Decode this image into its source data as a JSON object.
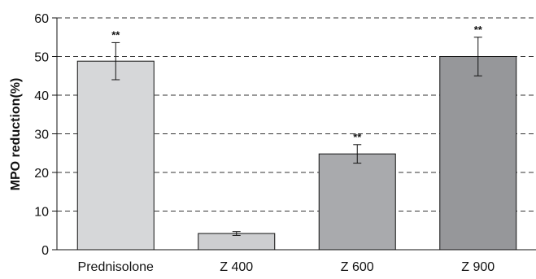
{
  "chart_data": {
    "type": "bar",
    "categories": [
      "Prednisolone",
      "Z 400",
      "Z 600",
      "Z 900"
    ],
    "values": [
      48.8,
      4.2,
      24.8,
      50.0
    ],
    "errors": [
      4.8,
      0.5,
      2.4,
      5.0
    ],
    "significance": [
      "**",
      "",
      "**",
      "**"
    ],
    "bar_colors": [
      "#d6d7d9",
      "#cdced0",
      "#a9aaad",
      "#96979a"
    ],
    "title": "",
    "xlabel": "",
    "ylabel": "MPO reduction(%)",
    "ylim": [
      0,
      60
    ],
    "yticks": [
      "0",
      "10",
      "20",
      "30",
      "40",
      "50",
      "60"
    ],
    "grid": "dashed horizontal"
  }
}
